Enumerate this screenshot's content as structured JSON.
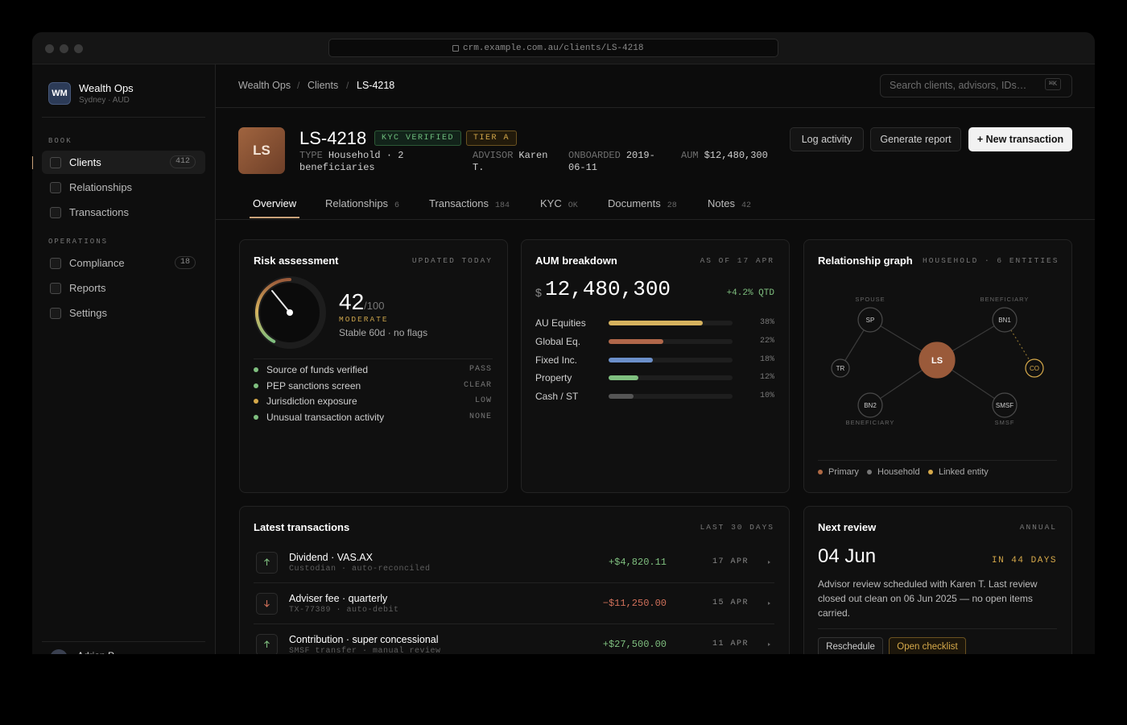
{
  "browser": {
    "url": "crm.example.com.au/clients/LS-4218"
  },
  "sidebar": {
    "logo": "WM",
    "brand": "Wealth Ops",
    "locale": "Sydney · AUD",
    "sections": [
      {
        "title": "BOOK",
        "items": [
          {
            "label": "Clients",
            "count": 412
          },
          {
            "label": "Relationships"
          },
          {
            "label": "Transactions"
          }
        ]
      },
      {
        "title": "OPERATIONS",
        "items": [
          {
            "label": "Compliance",
            "count": 18
          },
          {
            "label": "Reports"
          },
          {
            "label": "Settings"
          }
        ]
      }
    ],
    "user": "Adrian P."
  },
  "header": {
    "breadcrumb": [
      "Wealth Ops",
      "Clients",
      "LS-4218"
    ],
    "separator": "/",
    "search_placeholder": "Search clients, advisors, IDs…",
    "shortcut": "⌘K"
  },
  "client": {
    "initials": "LS",
    "id": "LS-4218",
    "badges": [
      "KYC VERIFIED",
      "TIER A"
    ],
    "meta": [
      {
        "label": "TYPE",
        "value": "Household · 2 beneficiaries"
      },
      {
        "label": "ADVISOR",
        "value": "Karen T."
      },
      {
        "label": "ONBOARDED",
        "value": "2019-06-11"
      },
      {
        "label": "AUM",
        "value": "$12,480,300"
      }
    ],
    "actions": [
      "Log activity",
      "Generate report",
      "+ New transaction"
    ]
  },
  "tabs": [
    {
      "label": "Overview"
    },
    {
      "label": "Relationships",
      "count": 6
    },
    {
      "label": "Transactions",
      "count": 184
    },
    {
      "label": "KYC",
      "count": "OK"
    },
    {
      "label": "Documents",
      "count": 28
    },
    {
      "label": "Notes",
      "count": 42
    }
  ],
  "risk": {
    "title": "Risk assessment",
    "note": "UPDATED TODAY",
    "score": 42,
    "out_of": {
      "value": 100,
      "label": "/100"
    },
    "level": "MODERATE",
    "summary": "Stable 60d · no flags",
    "checks": [
      {
        "label": "Source of funds verified",
        "status": "PASS",
        "color": "#7fbf7f"
      },
      {
        "label": "PEP sanctions screen",
        "status": "CLEAR",
        "color": "#7fbf7f"
      },
      {
        "label": "Jurisdiction exposure",
        "status": "LOW",
        "color": "#d6a94a"
      },
      {
        "label": "Unusual transaction activity",
        "status": "NONE",
        "color": "#7fbf7f"
      }
    ]
  },
  "aum": {
    "title": "AUM breakdown",
    "note": "AS OF 17 APR",
    "currency": "$",
    "total": "12,480,300",
    "change": "+4.2% QTD",
    "categories": [
      "AU Equities",
      "Global Eq.",
      "Fixed Inc.",
      "Property",
      "Cash / ST"
    ],
    "values": [
      38,
      22,
      18,
      12,
      10
    ],
    "value_labels": [
      "38%",
      "22%",
      "18%",
      "12%",
      "10%"
    ],
    "colors": [
      "#d6b25e",
      "#b0674a",
      "#6b8fc9",
      "#7fbf7f",
      "#555555"
    ],
    "xlim": [
      0,
      50
    ]
  },
  "graph": {
    "title": "Relationship graph",
    "note": "HOUSEHOLD · 6 ENTITIES",
    "nodes": [
      {
        "label": "LS"
      },
      {
        "label": "SP",
        "role": "SPOUSE"
      },
      {
        "label": "BN1",
        "role": "BENEFICIARY"
      },
      {
        "label": "TR"
      },
      {
        "label": "CO"
      },
      {
        "label": "BN2",
        "role": "BENEFICIARY"
      },
      {
        "label": "SMSF",
        "role": "SMSF"
      }
    ],
    "legend": [
      {
        "label": "Primary",
        "color": "#b06a45"
      },
      {
        "label": "Household",
        "color": "#777777"
      },
      {
        "label": "Linked entity",
        "color": "#d6a94a"
      }
    ]
  },
  "transactions": {
    "title": "Latest transactions",
    "note": "LAST 30 DAYS",
    "rows": [
      {
        "title": "Dividend · VAS.AX",
        "detail": "Custodian · auto-reconciled",
        "amount": "+$4,820.11",
        "date": "17 APR",
        "direction": "in"
      },
      {
        "title": "Adviser fee · quarterly",
        "detail": "TX-77389 · auto-debit",
        "amount": "−$11,250.00",
        "date": "15 APR",
        "direction": "out"
      },
      {
        "title": "Contribution · super concessional",
        "detail": "SMSF transfer · manual review",
        "amount": "+$27,500.00",
        "date": "11 APR",
        "direction": "in"
      }
    ]
  },
  "review": {
    "title": "Next review",
    "note": "ANNUAL",
    "date": "04 Jun",
    "countdown": "IN 44 DAYS",
    "text": "Advisor review scheduled with Karen T. Last review closed out clean on 06 Jun 2025 — no open items carried.",
    "actions": [
      "Reschedule",
      "Open checklist"
    ]
  }
}
